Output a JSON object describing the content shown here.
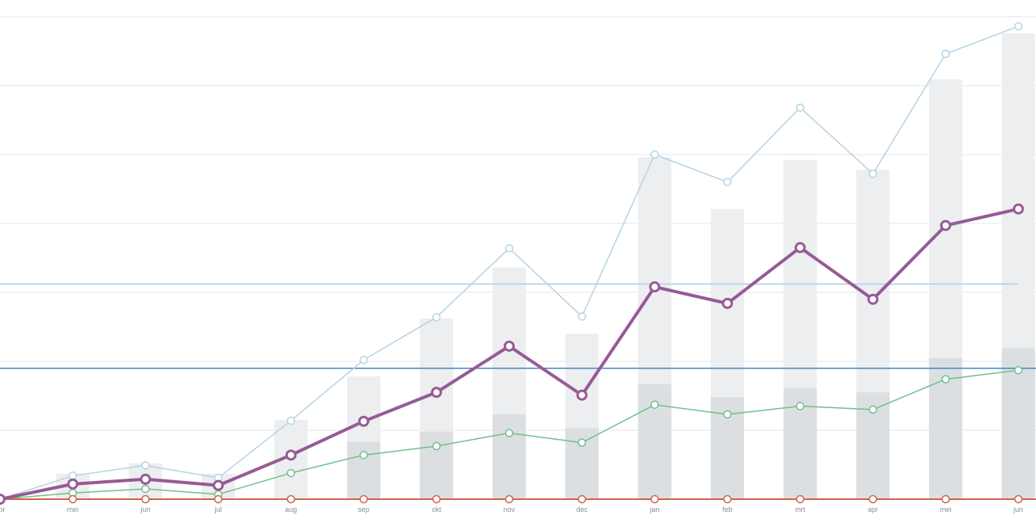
{
  "chart_data": {
    "type": "bar",
    "title": "",
    "xlabel": "",
    "ylabel": "",
    "categories": [
      "apr",
      "mei",
      "jun",
      "jul",
      "aug",
      "sep",
      "okt",
      "nov",
      "dec",
      "jan",
      "feb",
      "mrt",
      "apr",
      "mei",
      "jun"
    ],
    "ylim": [
      0,
      700
    ],
    "grid": true,
    "bars_total": [
      0,
      37,
      52,
      37,
      115,
      178,
      262,
      336,
      240,
      496,
      421,
      492,
      478,
      609,
      676
    ],
    "bars_base": [
      0,
      0,
      0,
      0,
      0,
      83,
      98,
      123,
      103,
      167,
      148,
      161,
      155,
      205,
      219
    ],
    "series": [
      {
        "values": [
          0,
          34,
          49,
          31,
          114,
          202,
          264,
          364,
          265,
          500,
          460,
          568,
          472,
          646,
          686
        ]
      },
      {
        "values": [
          0,
          22,
          29,
          20,
          64,
          113,
          155,
          222,
          151,
          308,
          284,
          365,
          290,
          397,
          421
        ]
      },
      {
        "values": [
          0,
          9,
          15,
          7,
          38,
          64,
          77,
          96,
          82,
          137,
          123,
          135,
          130,
          174,
          187
        ]
      },
      {
        "values": [
          0,
          0,
          0,
          0,
          0,
          0,
          0,
          0,
          0,
          0,
          0,
          0,
          0,
          0,
          0
        ]
      }
    ],
    "reference_lines": [
      312,
      190
    ],
    "colors": {
      "bar_total": "#eceeef",
      "bar_base": "#dcdfe1",
      "grid": "#e4e6e8",
      "series": [
        "#b5d3e4",
        "#965a96",
        "#6fc08b",
        "#d3634c"
      ],
      "reference_lines": [
        "#a9cde4",
        "#3d88c4"
      ],
      "tick_label": "#8a8f94"
    }
  }
}
